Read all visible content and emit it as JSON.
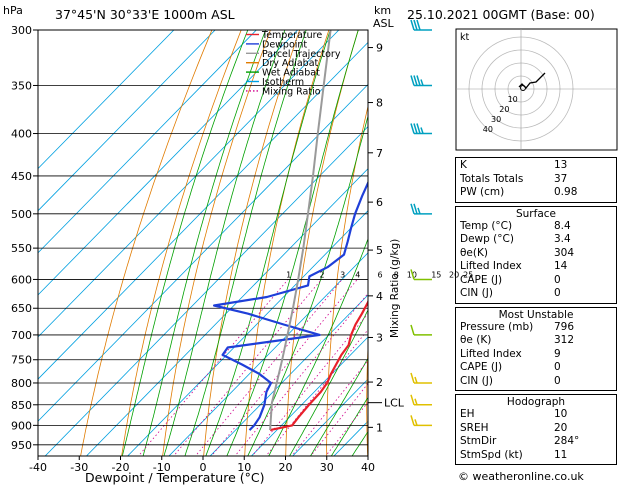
{
  "header": {
    "location": "37°45'N  30°33'E  1000m  ASL",
    "datetime": "25.10.2021  00GMT  (Base: 00)"
  },
  "axes": {
    "y_unit": "hPa",
    "height_unit_top": "km",
    "height_unit_bottom": "ASL",
    "xlabel": "Dewpoint / Temperature (°C)",
    "mixing_ratio_label": "Mixing Ratio (g/kg)",
    "lcl_label": "LCL"
  },
  "legend": [
    {
      "label": "Temperature",
      "color": "#e8202a"
    },
    {
      "label": "Dewpoint",
      "color": "#1f3fd8"
    },
    {
      "label": "Parcel Trajectory",
      "color": "#9a9a9a"
    },
    {
      "label": "Dry Adiabat",
      "color": "#e07b00"
    },
    {
      "label": "Wet Adiabat",
      "color": "#00a000"
    },
    {
      "label": "Isotherm",
      "color": "#00a0e0"
    },
    {
      "label": "Mixing Ratio",
      "color": "#d0008c"
    }
  ],
  "hodograph": {
    "label": "kt",
    "ring_labels": [
      "10",
      "20",
      "30",
      "40"
    ]
  },
  "indices": {
    "top": [
      {
        "label": "K",
        "value": "13"
      },
      {
        "label": "Totals Totals",
        "value": "37"
      },
      {
        "label": "PW (cm)",
        "value": "0.98"
      }
    ],
    "surface_title": "Surface",
    "surface": [
      {
        "label": "Temp (°C)",
        "value": "8.4"
      },
      {
        "label": "Dewp (°C)",
        "value": "3.4"
      },
      {
        "label": "θe(K)",
        "value": "304"
      },
      {
        "label": "Lifted Index",
        "value": "14"
      },
      {
        "label": "CAPE (J)",
        "value": "0"
      },
      {
        "label": "CIN (J)",
        "value": "0"
      }
    ],
    "unstable_title": "Most Unstable",
    "unstable": [
      {
        "label": "Pressure (mb)",
        "value": "796"
      },
      {
        "label": "θe (K)",
        "value": "312"
      },
      {
        "label": "Lifted Index",
        "value": "9"
      },
      {
        "label": "CAPE (J)",
        "value": "0"
      },
      {
        "label": "CIN (J)",
        "value": "0"
      }
    ],
    "hodo_title": "Hodograph",
    "hodo": [
      {
        "label": "EH",
        "value": "10"
      },
      {
        "label": "SREH",
        "value": "20"
      },
      {
        "label": "StmDir",
        "value": "284°"
      },
      {
        "label": "StmSpd (kt)",
        "value": "11"
      }
    ]
  },
  "footer": "© weatheronline.co.uk",
  "chart_data": {
    "type": "line",
    "title": "37°45'N  30°33'E  1000m  ASL",
    "xlabel": "Dewpoint / Temperature (°C)",
    "ylabel": "hPa",
    "xlim": [
      -40,
      40
    ],
    "ylim": [
      300,
      980
    ],
    "y_log": true,
    "skew": true,
    "pressure_ticks": [
      300,
      350,
      400,
      450,
      500,
      550,
      600,
      650,
      700,
      750,
      800,
      850,
      900,
      950
    ],
    "temperature_ticks": [
      -40,
      -30,
      -20,
      -10,
      0,
      10,
      20,
      30,
      40
    ],
    "height_ticks": [
      {
        "label": "1",
        "p": 905
      },
      {
        "label": "2",
        "p": 798
      },
      {
        "label": "3",
        "p": 705
      },
      {
        "label": "4",
        "p": 628
      },
      {
        "label": "5",
        "p": 553
      },
      {
        "label": "6",
        "p": 484
      },
      {
        "label": "7",
        "p": 422
      },
      {
        "label": "8",
        "p": 367
      },
      {
        "label": "9",
        "p": 315
      }
    ],
    "lcl_p": 845,
    "mixing_ratio_labels": [
      "1",
      "2",
      "3",
      "4",
      "6",
      "8",
      "10",
      "15",
      "20",
      "25"
    ],
    "series": [
      {
        "name": "Temperature",
        "color": "#e8202a",
        "p": [
          912,
          900,
          880,
          850,
          820,
          800,
          780,
          760,
          740,
          720,
          700,
          680,
          660,
          640,
          620,
          600,
          580,
          560,
          540,
          520,
          500,
          475,
          450,
          425,
          400,
          375,
          350,
          325,
          300
        ],
        "t": [
          8.4,
          12.6,
          12.2,
          11.8,
          11.6,
          11.0,
          9.8,
          8.8,
          7.8,
          7.2,
          5.4,
          4.0,
          3.0,
          1.8,
          0.2,
          -2.2,
          -3.8,
          -5.4,
          -7.4,
          -9.2,
          -11.0,
          -14.0,
          -17.2,
          -20.6,
          -24.4,
          -28.4,
          -32.8,
          -37.6,
          -42.6
        ]
      },
      {
        "name": "Dewpoint",
        "color": "#1f3fd8",
        "p": [
          912,
          900,
          880,
          850,
          820,
          800,
          780,
          760,
          740,
          725,
          700,
          680,
          660,
          645,
          630,
          610,
          595,
          580,
          560,
          540,
          520,
          500,
          475,
          450,
          425,
          400,
          375,
          350,
          325,
          305,
          300
        ],
        "t": [
          3.4,
          3.4,
          2.8,
          1.0,
          -1.6,
          -2.6,
          -7.6,
          -14.0,
          -21.0,
          -21.5,
          -2.2,
          -13.4,
          -24.6,
          -34.8,
          -24.0,
          -16.8,
          -18.6,
          -16.4,
          -15.4,
          -17.6,
          -20.0,
          -22.4,
          -25.0,
          -27.5,
          -31.2,
          -35.2,
          -41.0,
          -47.0,
          -52.8,
          -57.6,
          -58.0
        ]
      },
      {
        "name": "Parcel Trajectory",
        "color": "#9a9a9a",
        "p": [
          912,
          845,
          800,
          750,
          700,
          650,
          600,
          550,
          500,
          450,
          400,
          350,
          300
        ],
        "t": [
          8.4,
          2.3,
          -1.2,
          -5.4,
          -10.0,
          -15.0,
          -20.6,
          -26.8,
          -33.8,
          -41.6,
          -50.5,
          -60.5,
          -72.0
        ]
      }
    ],
    "wind_barbs": [
      {
        "p": 300,
        "speed": 30,
        "dir": 255
      },
      {
        "p": 350,
        "speed": 25,
        "dir": 260
      },
      {
        "p": 400,
        "speed": 25,
        "dir": 260
      },
      {
        "p": 500,
        "speed": 15,
        "dir": 250
      },
      {
        "p": 600,
        "speed": 10,
        "dir": 250
      },
      {
        "p": 700,
        "speed": 10,
        "dir": 260
      },
      {
        "p": 800,
        "speed": 5,
        "dir": 300
      },
      {
        "p": 850,
        "speed": 5,
        "dir": 320
      },
      {
        "p": 900,
        "speed": 5,
        "dir": 330
      }
    ]
  }
}
